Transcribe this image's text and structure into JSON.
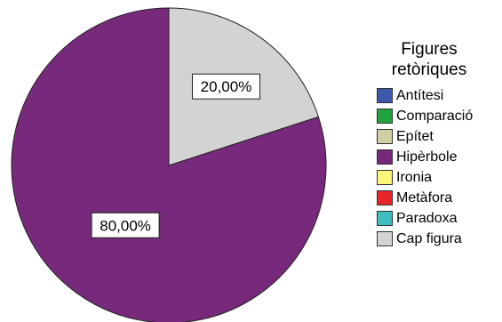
{
  "chart_data": {
    "type": "pie",
    "title": "",
    "legend_title": "Figures retòriques",
    "legend_title_lines": [
      "Figures",
      "retòriques"
    ],
    "legend_position": "right",
    "categories": [
      "Antítesi",
      "Comparació",
      "Epítet",
      "Hipèrbole",
      "Ironia",
      "Metàfora",
      "Paradoxa",
      "Cap figura"
    ],
    "values": [
      0,
      0,
      0,
      80,
      0,
      0,
      0,
      20
    ],
    "colors": [
      "#3e58ac",
      "#21a340",
      "#d2cfa5",
      "#772a7c",
      "#fbf57e",
      "#e8262a",
      "#3fbdbf",
      "#d3d3d3"
    ],
    "data_labels": [
      "",
      "",
      "",
      "80,00%",
      "",
      "",
      "",
      "20,00%"
    ]
  }
}
